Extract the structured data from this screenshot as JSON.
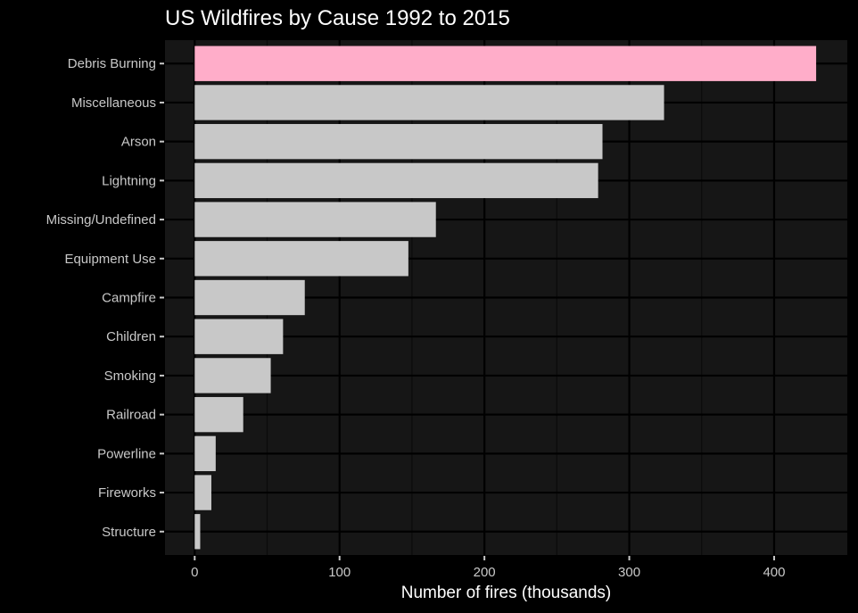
{
  "chart_data": {
    "type": "bar",
    "orientation": "horizontal",
    "title": "US Wildfires by Cause 1992 to 2015",
    "xlabel": "Number of fires (thousands)",
    "ylabel": "",
    "categories": [
      "Debris Burning",
      "Miscellaneous",
      "Arson",
      "Lightning",
      "Missing/Undefined",
      "Equipment Use",
      "Campfire",
      "Children",
      "Smoking",
      "Railroad",
      "Powerline",
      "Fireworks",
      "Structure"
    ],
    "values": [
      429.0,
      324.0,
      281.5,
      278.5,
      166.5,
      147.5,
      76.0,
      61.0,
      52.5,
      33.5,
      14.5,
      11.5,
      3.8
    ],
    "xlim": [
      -20.5,
      450.5
    ],
    "xticks": [
      0,
      100,
      200,
      300,
      400
    ],
    "xtick_labels": [
      "0",
      "100",
      "200",
      "300",
      "400"
    ],
    "grid": true,
    "colors": {
      "background": "#000000",
      "panel": "#161616",
      "grid_major": "#000000",
      "grid_minor": "#0b0b0b",
      "bar": "#c8c8c8",
      "highlight_bar": "#ffadc9",
      "text": "#ffffff",
      "tick_text": "#c8c8c8"
    },
    "highlight_category": "Debris Burning"
  }
}
